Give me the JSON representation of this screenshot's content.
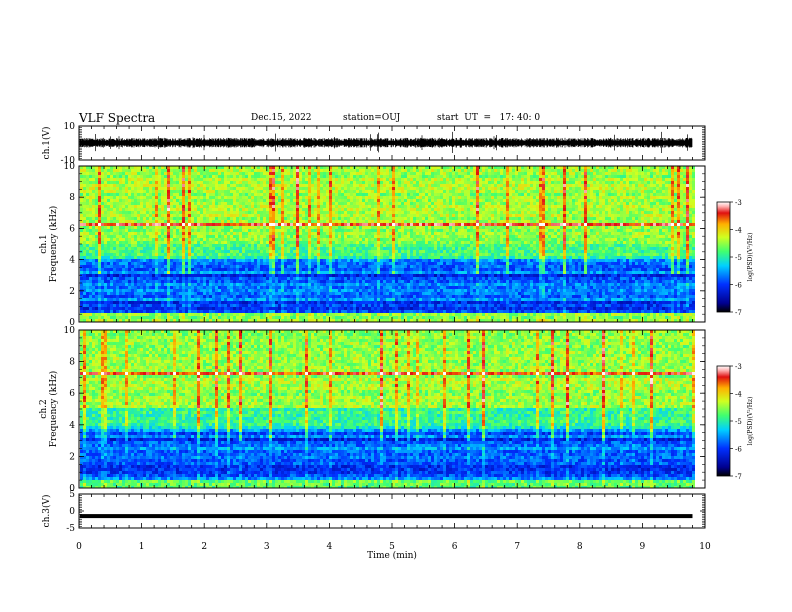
{
  "header": {
    "title": "VLF Spectra",
    "date": "Dec.15, 2022",
    "station": "station=OUJ",
    "start": "start  UT  =   17: 40: 0"
  },
  "chart_data": [
    {
      "type": "line",
      "panel": "ch1-waveform",
      "ylabel": "ch.1(V)",
      "ylim": [
        -10,
        10
      ],
      "yticks": [
        -10,
        10
      ],
      "xlim": [
        0,
        10
      ],
      "data_end_min": 9.8,
      "level": 0,
      "amplitude": 3,
      "series_color": "#000000"
    },
    {
      "type": "heatmap",
      "panel": "ch1-spectrogram",
      "ylabel_line1": "ch.1",
      "ylabel_line2": "Frequency (kHz)",
      "ylim": [
        0,
        10
      ],
      "yticks": [
        0,
        2,
        4,
        6,
        8,
        10
      ],
      "xlim": [
        0,
        10
      ],
      "data_end_min": 9.8,
      "colorbar": {
        "label": "log(PSD)(V²/Hz)",
        "range": [
          -7,
          -3
        ],
        "ticks": [
          -3,
          -4,
          -5,
          -6,
          -7
        ]
      }
    },
    {
      "type": "heatmap",
      "panel": "ch2-spectrogram",
      "ylabel_line1": "ch.2",
      "ylabel_line2": "Frequency (kHz)",
      "ylim": [
        0,
        10
      ],
      "yticks": [
        0,
        2,
        4,
        6,
        8,
        10
      ],
      "xlim": [
        0,
        10
      ],
      "data_end_min": 9.8,
      "colorbar": {
        "label": "log(PSD)(V²/Hz)",
        "range": [
          -7,
          -3
        ],
        "ticks": [
          -3,
          -4,
          -5,
          -6,
          -7
        ]
      }
    },
    {
      "type": "line",
      "panel": "ch3-waveform",
      "ylabel": "ch.3(V)",
      "ylim": [
        -5,
        5
      ],
      "yticks": [
        -5,
        0,
        5
      ],
      "xlim": [
        0,
        10
      ],
      "data_end_min": 9.8,
      "level": -1.5,
      "series_color": "#000000"
    }
  ],
  "x_axis": {
    "label": "Time (min)",
    "ticks": [
      0,
      1,
      2,
      3,
      4,
      5,
      6,
      7,
      8,
      9,
      10
    ]
  }
}
